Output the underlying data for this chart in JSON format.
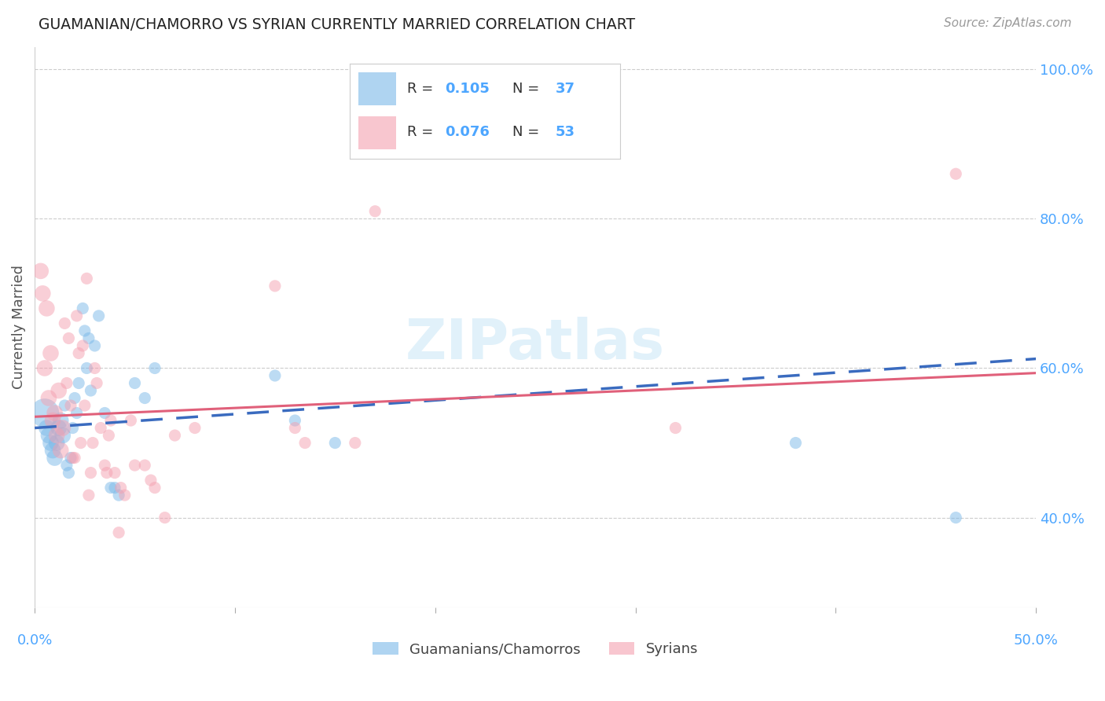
{
  "title": "GUAMANIAN/CHAMORRO VS SYRIAN CURRENTLY MARRIED CORRELATION CHART",
  "source": "Source: ZipAtlas.com",
  "ylabel": "Currently Married",
  "blue_color": "#7ab8e8",
  "pink_color": "#f4a0b0",
  "blue_line_color": "#3a6bbf",
  "pink_line_color": "#e0607a",
  "tick_color": "#4da6ff",
  "xlim": [
    0.0,
    50.0
  ],
  "ylim": [
    28.0,
    103.0
  ],
  "x_ticks": [
    0,
    10,
    20,
    30,
    40,
    50
  ],
  "y_ticks": [
    40.0,
    60.0,
    80.0,
    100.0
  ],
  "blue_scatter": [
    [
      0.5,
      54
    ],
    [
      0.6,
      52
    ],
    [
      0.7,
      51
    ],
    [
      0.8,
      50
    ],
    [
      0.9,
      49
    ],
    [
      1.0,
      48
    ],
    [
      1.1,
      50
    ],
    [
      1.2,
      52
    ],
    [
      1.3,
      53
    ],
    [
      1.4,
      51
    ],
    [
      1.5,
      55
    ],
    [
      1.6,
      47
    ],
    [
      1.7,
      46
    ],
    [
      1.8,
      48
    ],
    [
      1.9,
      52
    ],
    [
      2.0,
      56
    ],
    [
      2.1,
      54
    ],
    [
      2.2,
      58
    ],
    [
      2.4,
      68
    ],
    [
      2.5,
      65
    ],
    [
      2.6,
      60
    ],
    [
      2.7,
      64
    ],
    [
      2.8,
      57
    ],
    [
      3.0,
      63
    ],
    [
      3.2,
      67
    ],
    [
      3.5,
      54
    ],
    [
      3.8,
      44
    ],
    [
      4.0,
      44
    ],
    [
      4.2,
      43
    ],
    [
      5.0,
      58
    ],
    [
      5.5,
      56
    ],
    [
      6.0,
      60
    ],
    [
      12.0,
      59
    ],
    [
      13.0,
      53
    ],
    [
      15.0,
      50
    ],
    [
      38.0,
      50
    ],
    [
      46.0,
      40
    ]
  ],
  "pink_scatter": [
    [
      0.3,
      73
    ],
    [
      0.4,
      70
    ],
    [
      0.5,
      60
    ],
    [
      0.6,
      68
    ],
    [
      0.7,
      56
    ],
    [
      0.8,
      62
    ],
    [
      0.9,
      53
    ],
    [
      1.0,
      54
    ],
    [
      1.1,
      51
    ],
    [
      1.2,
      57
    ],
    [
      1.3,
      49
    ],
    [
      1.4,
      52
    ],
    [
      1.5,
      66
    ],
    [
      1.6,
      58
    ],
    [
      1.7,
      64
    ],
    [
      1.8,
      55
    ],
    [
      1.9,
      48
    ],
    [
      2.0,
      48
    ],
    [
      2.1,
      67
    ],
    [
      2.2,
      62
    ],
    [
      2.3,
      50
    ],
    [
      2.4,
      63
    ],
    [
      2.5,
      55
    ],
    [
      2.6,
      72
    ],
    [
      2.7,
      43
    ],
    [
      2.8,
      46
    ],
    [
      2.9,
      50
    ],
    [
      3.0,
      60
    ],
    [
      3.1,
      58
    ],
    [
      3.3,
      52
    ],
    [
      3.5,
      47
    ],
    [
      3.6,
      46
    ],
    [
      3.7,
      51
    ],
    [
      3.8,
      53
    ],
    [
      4.0,
      46
    ],
    [
      4.2,
      38
    ],
    [
      4.3,
      44
    ],
    [
      4.5,
      43
    ],
    [
      4.8,
      53
    ],
    [
      5.0,
      47
    ],
    [
      5.5,
      47
    ],
    [
      5.8,
      45
    ],
    [
      6.0,
      44
    ],
    [
      6.5,
      40
    ],
    [
      7.0,
      51
    ],
    [
      8.0,
      52
    ],
    [
      12.0,
      71
    ],
    [
      13.0,
      52
    ],
    [
      13.5,
      50
    ],
    [
      16.0,
      50
    ],
    [
      17.0,
      81
    ],
    [
      32.0,
      52
    ],
    [
      46.0,
      86
    ]
  ],
  "blue_R": 0.105,
  "pink_R": 0.076,
  "blue_N": 37,
  "pink_N": 53,
  "blue_intercept": 52.0,
  "blue_slope": 0.185,
  "pink_intercept": 53.5,
  "pink_slope": 0.117,
  "watermark": "ZIPatlas",
  "bg_color": "#ffffff",
  "grid_color": "#cccccc"
}
